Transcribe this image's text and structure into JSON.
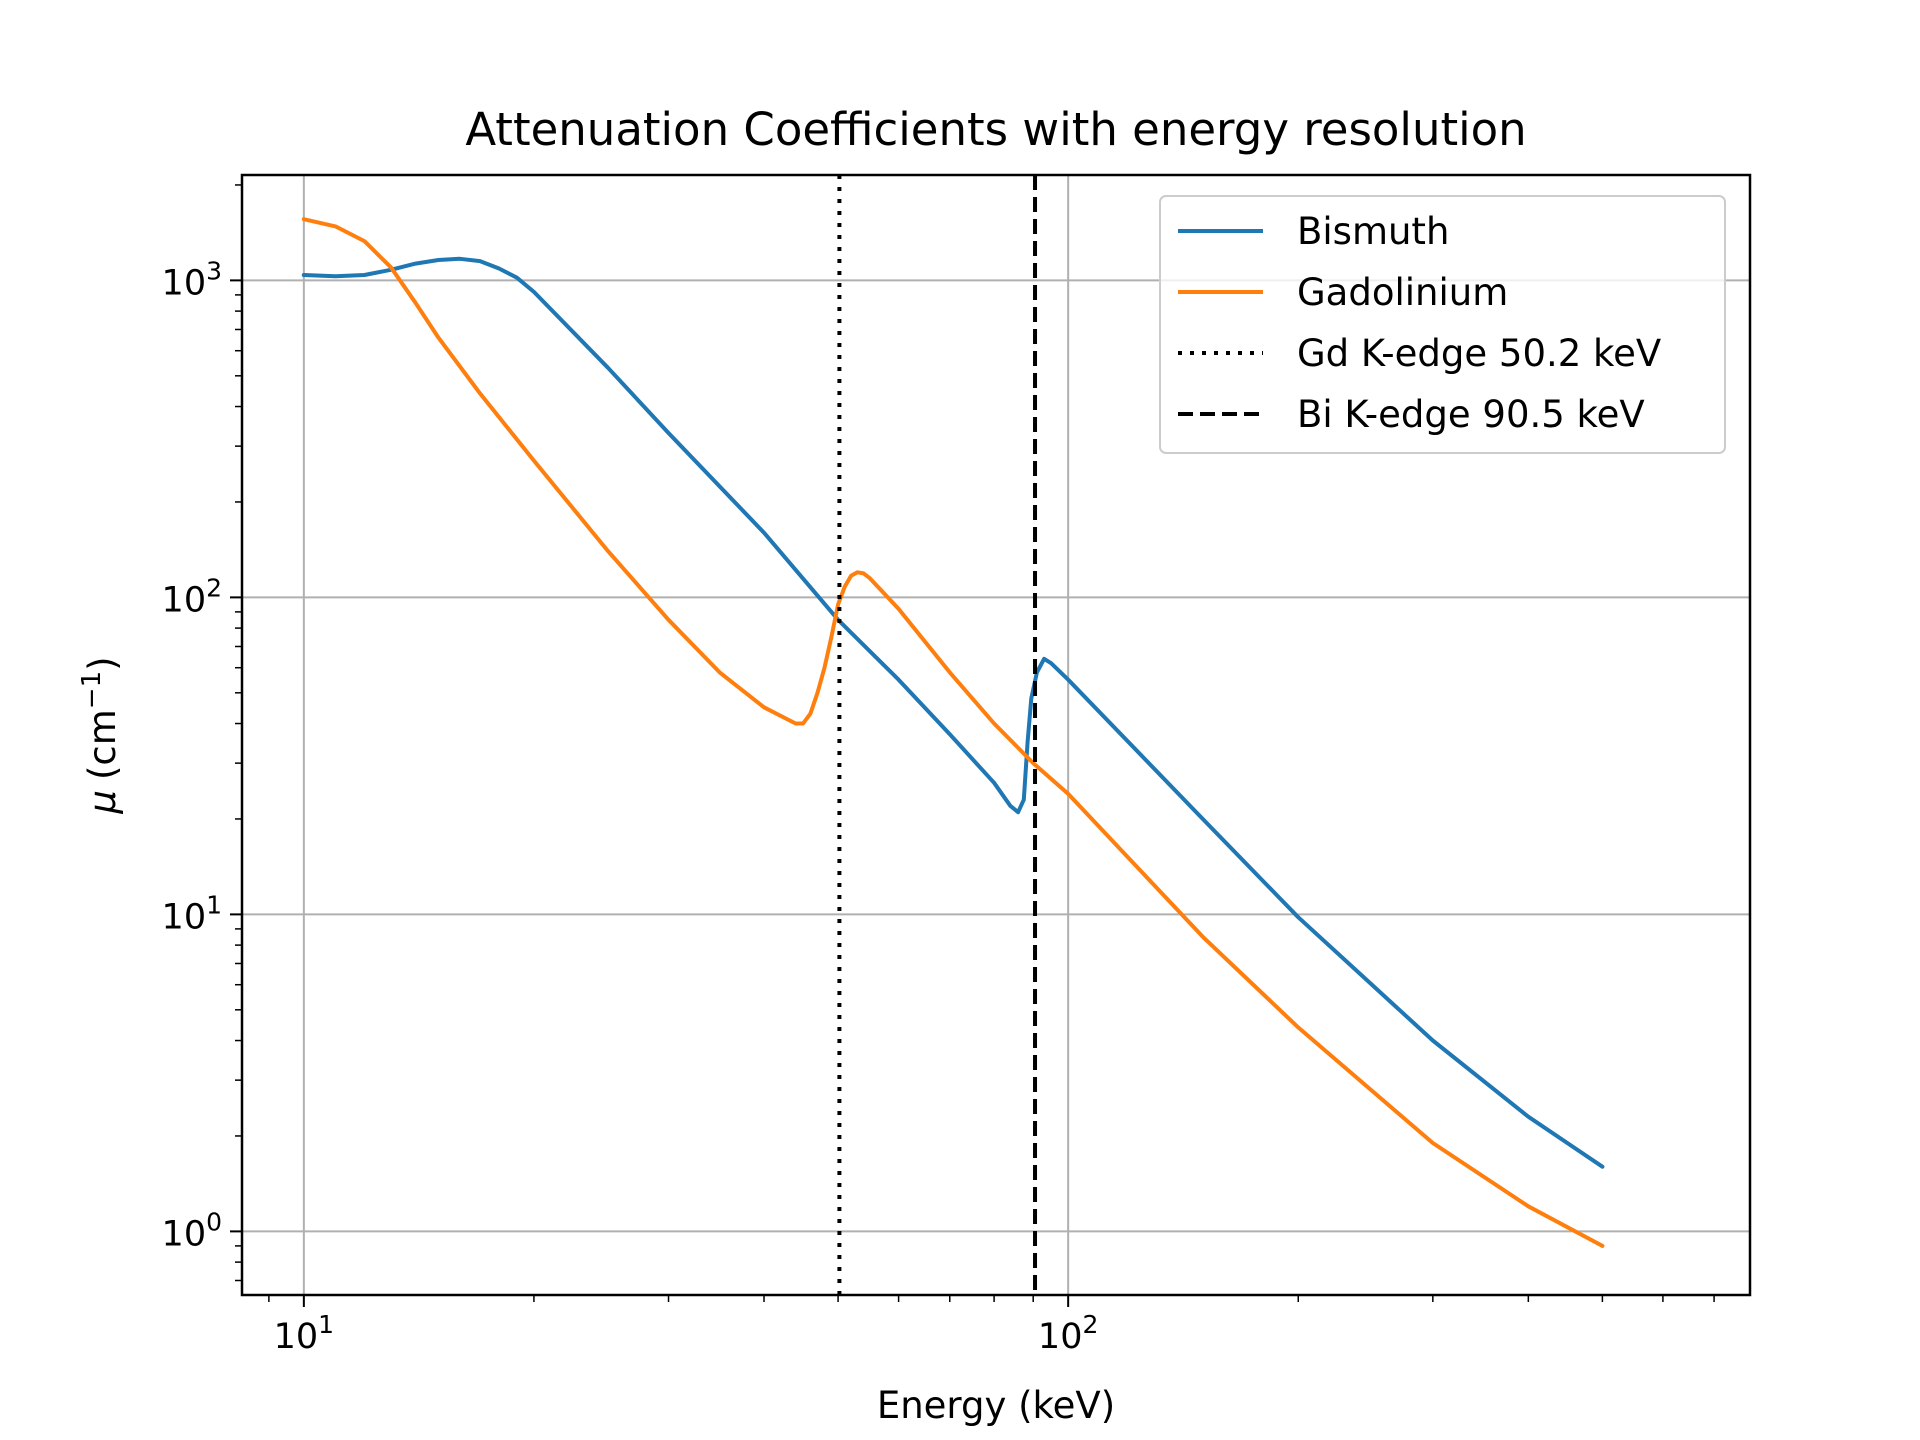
{
  "chart_data": {
    "type": "line",
    "title": "Attenuation Coefficients with energy resolution",
    "xlabel": "Energy (keV)",
    "ylabel_symbol": "μ",
    "ylabel_unit": "(cm",
    "ylabel_exp": "−1",
    "ylabel_close": ")",
    "x_scale": "log",
    "y_scale": "log",
    "xlim": [
      8.3,
      780
    ],
    "ylim": [
      0.63,
      2150
    ],
    "x_ticks": [
      {
        "value": 10,
        "base": "10",
        "exp": "1"
      },
      {
        "value": 100,
        "base": "10",
        "exp": "2"
      }
    ],
    "y_ticks": [
      {
        "value": 1,
        "base": "10",
        "exp": "0"
      },
      {
        "value": 10,
        "base": "10",
        "exp": "1"
      },
      {
        "value": 100,
        "base": "10",
        "exp": "2"
      },
      {
        "value": 1000,
        "base": "10",
        "exp": "3"
      }
    ],
    "grid": true,
    "legend_position": "top-right",
    "series": [
      {
        "name": "Bismuth",
        "color": "#1f77b4",
        "style": "solid",
        "points": [
          [
            10,
            1040
          ],
          [
            11,
            1030
          ],
          [
            12,
            1040
          ],
          [
            13,
            1080
          ],
          [
            14,
            1130
          ],
          [
            15,
            1160
          ],
          [
            16,
            1170
          ],
          [
            17,
            1150
          ],
          [
            18,
            1090
          ],
          [
            19,
            1020
          ],
          [
            20,
            920
          ],
          [
            25,
            530
          ],
          [
            30,
            330
          ],
          [
            40,
            160
          ],
          [
            50,
            85
          ],
          [
            60,
            55
          ],
          [
            70,
            37
          ],
          [
            80,
            26
          ],
          [
            84,
            22
          ],
          [
            86,
            21
          ],
          [
            87.5,
            23
          ],
          [
            88.5,
            35
          ],
          [
            89.5,
            48
          ],
          [
            91,
            58
          ],
          [
            93,
            64
          ],
          [
            95,
            62
          ],
          [
            100,
            55
          ],
          [
            150,
            20
          ],
          [
            200,
            9.8
          ],
          [
            300,
            4
          ],
          [
            400,
            2.3
          ],
          [
            500,
            1.6
          ]
        ]
      },
      {
        "name": "Gadolinium",
        "color": "#ff7f0e",
        "style": "solid",
        "points": [
          [
            10,
            1560
          ],
          [
            11,
            1480
          ],
          [
            12,
            1330
          ],
          [
            13,
            1100
          ],
          [
            14,
            850
          ],
          [
            15,
            660
          ],
          [
            17,
            440
          ],
          [
            20,
            270
          ],
          [
            25,
            140
          ],
          [
            30,
            85
          ],
          [
            35,
            58
          ],
          [
            40,
            45
          ],
          [
            44,
            40
          ],
          [
            45,
            40
          ],
          [
            46,
            43
          ],
          [
            47,
            50
          ],
          [
            48,
            60
          ],
          [
            49,
            75
          ],
          [
            50,
            95
          ],
          [
            51,
            108
          ],
          [
            52,
            117
          ],
          [
            53,
            120
          ],
          [
            54,
            119
          ],
          [
            55,
            115
          ],
          [
            60,
            92
          ],
          [
            70,
            58
          ],
          [
            80,
            40
          ],
          [
            90,
            30
          ],
          [
            100,
            24
          ],
          [
            150,
            8.5
          ],
          [
            200,
            4.4
          ],
          [
            300,
            1.9
          ],
          [
            400,
            1.2
          ],
          [
            500,
            0.9
          ]
        ]
      }
    ],
    "vlines": [
      {
        "name": "Gd K-edge 50.2 keV",
        "x": 50.2,
        "color": "#000000",
        "style": "dotted"
      },
      {
        "name": "Bi K-edge 90.5 keV",
        "x": 90.5,
        "color": "#000000",
        "style": "dashed"
      }
    ]
  }
}
